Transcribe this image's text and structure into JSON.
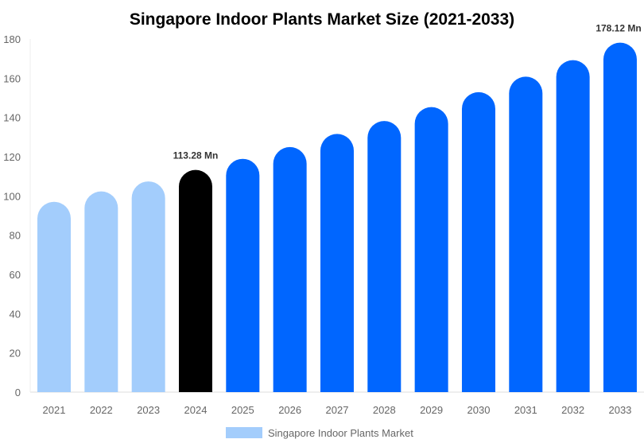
{
  "chart_data": {
    "type": "bar",
    "title": "Singapore Indoor Plants Market Size (2021-2033)",
    "categories": [
      "2021",
      "2022",
      "2023",
      "2024",
      "2025",
      "2026",
      "2027",
      "2028",
      "2029",
      "2030",
      "2031",
      "2032",
      "2033"
    ],
    "series": [
      {
        "name": "Singapore Indoor Plants Market",
        "values": [
          97.0,
          102.3,
          107.4,
          113.28,
          118.9,
          124.9,
          131.6,
          138.2,
          145.3,
          152.9,
          160.8,
          169.2,
          178.12
        ]
      }
    ],
    "bar_colors": [
      "#a3cdfc",
      "#a3cdfc",
      "#a3cdfc",
      "#000000",
      "#0066ff",
      "#0066ff",
      "#0066ff",
      "#0066ff",
      "#0066ff",
      "#0066ff",
      "#0066ff",
      "#0066ff",
      "#0066ff"
    ],
    "legend_color": "#a3cdfc",
    "data_labels": [
      {
        "category": "2024",
        "text": "113.28 Mn"
      },
      {
        "category": "2033",
        "text": "178.12 Mn"
      }
    ],
    "yticks": [
      0,
      20,
      40,
      60,
      80,
      100,
      120,
      140,
      160,
      180
    ],
    "ylim": [
      0,
      180
    ],
    "grid": false,
    "legend_position": "bottom",
    "xlabel": "",
    "ylabel": ""
  }
}
